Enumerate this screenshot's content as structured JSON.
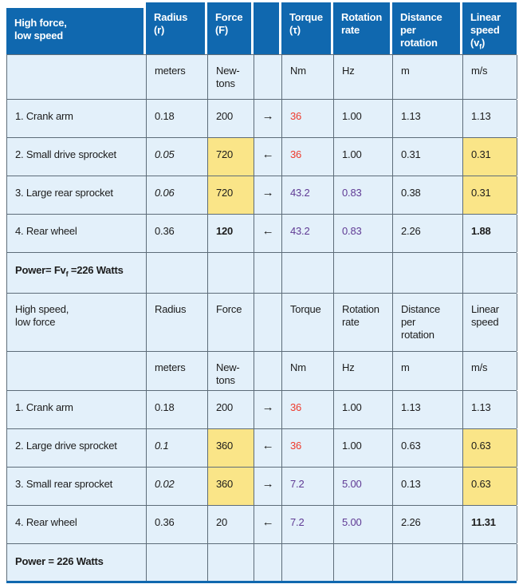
{
  "colors": {
    "header_bg": "#1068af",
    "cell_bg": "#e3f0fa",
    "highlight_yellow": "#fae588",
    "torque_red": "#ee3a2c",
    "accent_purple": "#5f3a94",
    "grid_border": "#5d6c79",
    "bottom_rule_blue": "#1068af"
  },
  "rows": [
    {
      "type": "header",
      "cells": [
        {
          "t": "High force,\nlow speed"
        },
        {
          "t": "Radius\n(r)"
        },
        {
          "t": "Force\n(F)"
        },
        {
          "t": ""
        },
        {
          "t": "Torque\n(τ)"
        },
        {
          "t": "Rotation\nrate"
        },
        {
          "t": "Distance\nper\nrotation"
        },
        {
          "t": "Linear\nspeed\n(v~f~)"
        }
      ]
    },
    {
      "type": "units",
      "cells": [
        {
          "t": ""
        },
        {
          "t": "meters"
        },
        {
          "t": "New-\ntons"
        },
        {
          "t": ""
        },
        {
          "t": "Nm"
        },
        {
          "t": "Hz"
        },
        {
          "t": "m"
        },
        {
          "t": "m/s"
        }
      ]
    },
    {
      "type": "data",
      "cells": [
        {
          "t": "1. Crank arm"
        },
        {
          "t": "0.18"
        },
        {
          "t": "200"
        },
        {
          "t": "→",
          "arrow": true
        },
        {
          "t": "36",
          "color": "red"
        },
        {
          "t": "1.00"
        },
        {
          "t": "1.13"
        },
        {
          "t": "1.13"
        }
      ]
    },
    {
      "type": "data",
      "cells": [
        {
          "t": "2. Small drive sprocket"
        },
        {
          "t": "0.05",
          "italic": true
        },
        {
          "t": "720",
          "bg": "yellow"
        },
        {
          "t": "←",
          "arrow": true
        },
        {
          "t": "36",
          "color": "red"
        },
        {
          "t": "1.00"
        },
        {
          "t": "0.31"
        },
        {
          "t": "0.31",
          "bg": "yellow"
        }
      ]
    },
    {
      "type": "data",
      "cells": [
        {
          "t": "3. Large rear sprocket"
        },
        {
          "t": "0.06",
          "italic": true
        },
        {
          "t": "720",
          "bg": "yellow"
        },
        {
          "t": "→",
          "arrow": true
        },
        {
          "t": "43.2",
          "color": "purple"
        },
        {
          "t": "0.83",
          "color": "purple"
        },
        {
          "t": "0.38"
        },
        {
          "t": "0.31",
          "bg": "yellow"
        }
      ]
    },
    {
      "type": "data",
      "cells": [
        {
          "t": "4. Rear wheel"
        },
        {
          "t": "0.36"
        },
        {
          "t": "120",
          "bold": true
        },
        {
          "t": "←",
          "arrow": true
        },
        {
          "t": "43.2",
          "color": "purple"
        },
        {
          "t": "0.83",
          "color": "purple"
        },
        {
          "t": "2.26"
        },
        {
          "t": "1.88",
          "bold": true
        }
      ]
    },
    {
      "type": "power",
      "cells": [
        {
          "t": "Power= Fv~f~ =226 Watts",
          "bold": true
        },
        {
          "t": ""
        },
        {
          "t": ""
        },
        {
          "t": ""
        },
        {
          "t": ""
        },
        {
          "t": ""
        },
        {
          "t": ""
        },
        {
          "t": ""
        }
      ]
    },
    {
      "type": "header2",
      "cells": [
        {
          "t": "High speed,\nlow force"
        },
        {
          "t": "Radius"
        },
        {
          "t": "Force"
        },
        {
          "t": ""
        },
        {
          "t": "Torque"
        },
        {
          "t": "Rotation\nrate"
        },
        {
          "t": "Distance\nper\nrotation"
        },
        {
          "t": "Linear\nspeed"
        }
      ]
    },
    {
      "type": "units2",
      "cells": [
        {
          "t": ""
        },
        {
          "t": "meters"
        },
        {
          "t": "New-\ntons"
        },
        {
          "t": ""
        },
        {
          "t": "Nm"
        },
        {
          "t": "Hz"
        },
        {
          "t": "m"
        },
        {
          "t": "m/s"
        }
      ]
    },
    {
      "type": "data",
      "cells": [
        {
          "t": "1. Crank arm"
        },
        {
          "t": "0.18"
        },
        {
          "t": "200"
        },
        {
          "t": "→",
          "arrow": true
        },
        {
          "t": "36",
          "color": "red"
        },
        {
          "t": "1.00"
        },
        {
          "t": "1.13"
        },
        {
          "t": "1.13"
        }
      ]
    },
    {
      "type": "data",
      "cells": [
        {
          "t": "2. Large drive sprocket"
        },
        {
          "t": "0.1",
          "italic": true
        },
        {
          "t": "360",
          "bg": "yellow"
        },
        {
          "t": "←",
          "arrow": true
        },
        {
          "t": "36",
          "color": "red"
        },
        {
          "t": "1.00"
        },
        {
          "t": "0.63"
        },
        {
          "t": "0.63",
          "bg": "yellow"
        }
      ]
    },
    {
      "type": "data",
      "cells": [
        {
          "t": "3. Small rear sprocket"
        },
        {
          "t": "0.02",
          "italic": true
        },
        {
          "t": "360",
          "bg": "yellow"
        },
        {
          "t": "→",
          "arrow": true
        },
        {
          "t": "7.2",
          "color": "purple"
        },
        {
          "t": "5.00",
          "color": "purple"
        },
        {
          "t": "0.13"
        },
        {
          "t": "0.63",
          "bg": "yellow"
        }
      ]
    },
    {
      "type": "data",
      "cells": [
        {
          "t": "4. Rear wheel"
        },
        {
          "t": "0.36"
        },
        {
          "t": "20"
        },
        {
          "t": "←",
          "arrow": true
        },
        {
          "t": "7.2",
          "color": "purple"
        },
        {
          "t": "5.00",
          "color": "purple"
        },
        {
          "t": "2.26"
        },
        {
          "t": "11.31",
          "bold": true
        }
      ]
    },
    {
      "type": "power2",
      "cells": [
        {
          "t": "Power = 226 Watts",
          "bold": true
        },
        {
          "t": ""
        },
        {
          "t": ""
        },
        {
          "t": ""
        },
        {
          "t": ""
        },
        {
          "t": ""
        },
        {
          "t": ""
        },
        {
          "t": ""
        }
      ]
    }
  ]
}
